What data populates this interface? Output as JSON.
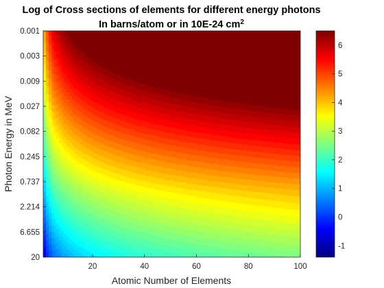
{
  "chart_data": {
    "type": "heatmap",
    "title": "Log of Cross sections of elements for different energy photons",
    "subtitle_prefix": "In barns/atom or in 10E-24 cm",
    "subtitle_sup": "2",
    "xlabel": "Atomic Number of Elements",
    "ylabel": "Photon Energy in MeV",
    "x_range": [
      1,
      100
    ],
    "x_ticks": [
      20,
      40,
      60,
      80,
      100
    ],
    "y_tick_labels": [
      "0.001",
      "0.003",
      "0.009",
      "0.027",
      "0.082",
      "0.245",
      "0.737",
      "2.214",
      "6.655",
      "20"
    ],
    "y_direction": "energy increases downward",
    "y_scale": "log",
    "colormap": "jet",
    "color_range": [
      -1.4,
      6.5
    ],
    "colorbar_ticks": [
      -1,
      0,
      1,
      2,
      3,
      4,
      5,
      6
    ],
    "colorbar": true,
    "grid": false,
    "value_estimates": [
      {
        "energy_MeV": 0.001,
        "z": 1,
        "log_value": 2.0
      },
      {
        "energy_MeV": 0.001,
        "z": 20,
        "log_value": 5.2
      },
      {
        "energy_MeV": 0.001,
        "z": 100,
        "log_value": 6.5
      },
      {
        "energy_MeV": 0.009,
        "z": 50,
        "log_value": 4.6
      },
      {
        "energy_MeV": 0.082,
        "z": 1,
        "log_value": -0.7
      },
      {
        "energy_MeV": 0.082,
        "z": 100,
        "log_value": 2.6
      },
      {
        "energy_MeV": 0.737,
        "z": 1,
        "log_value": -0.6
      },
      {
        "energy_MeV": 0.737,
        "z": 100,
        "log_value": 1.5
      },
      {
        "energy_MeV": 20,
        "z": 1,
        "log_value": -1.4
      },
      {
        "energy_MeV": 20,
        "z": 100,
        "log_value": 1.3
      }
    ]
  }
}
